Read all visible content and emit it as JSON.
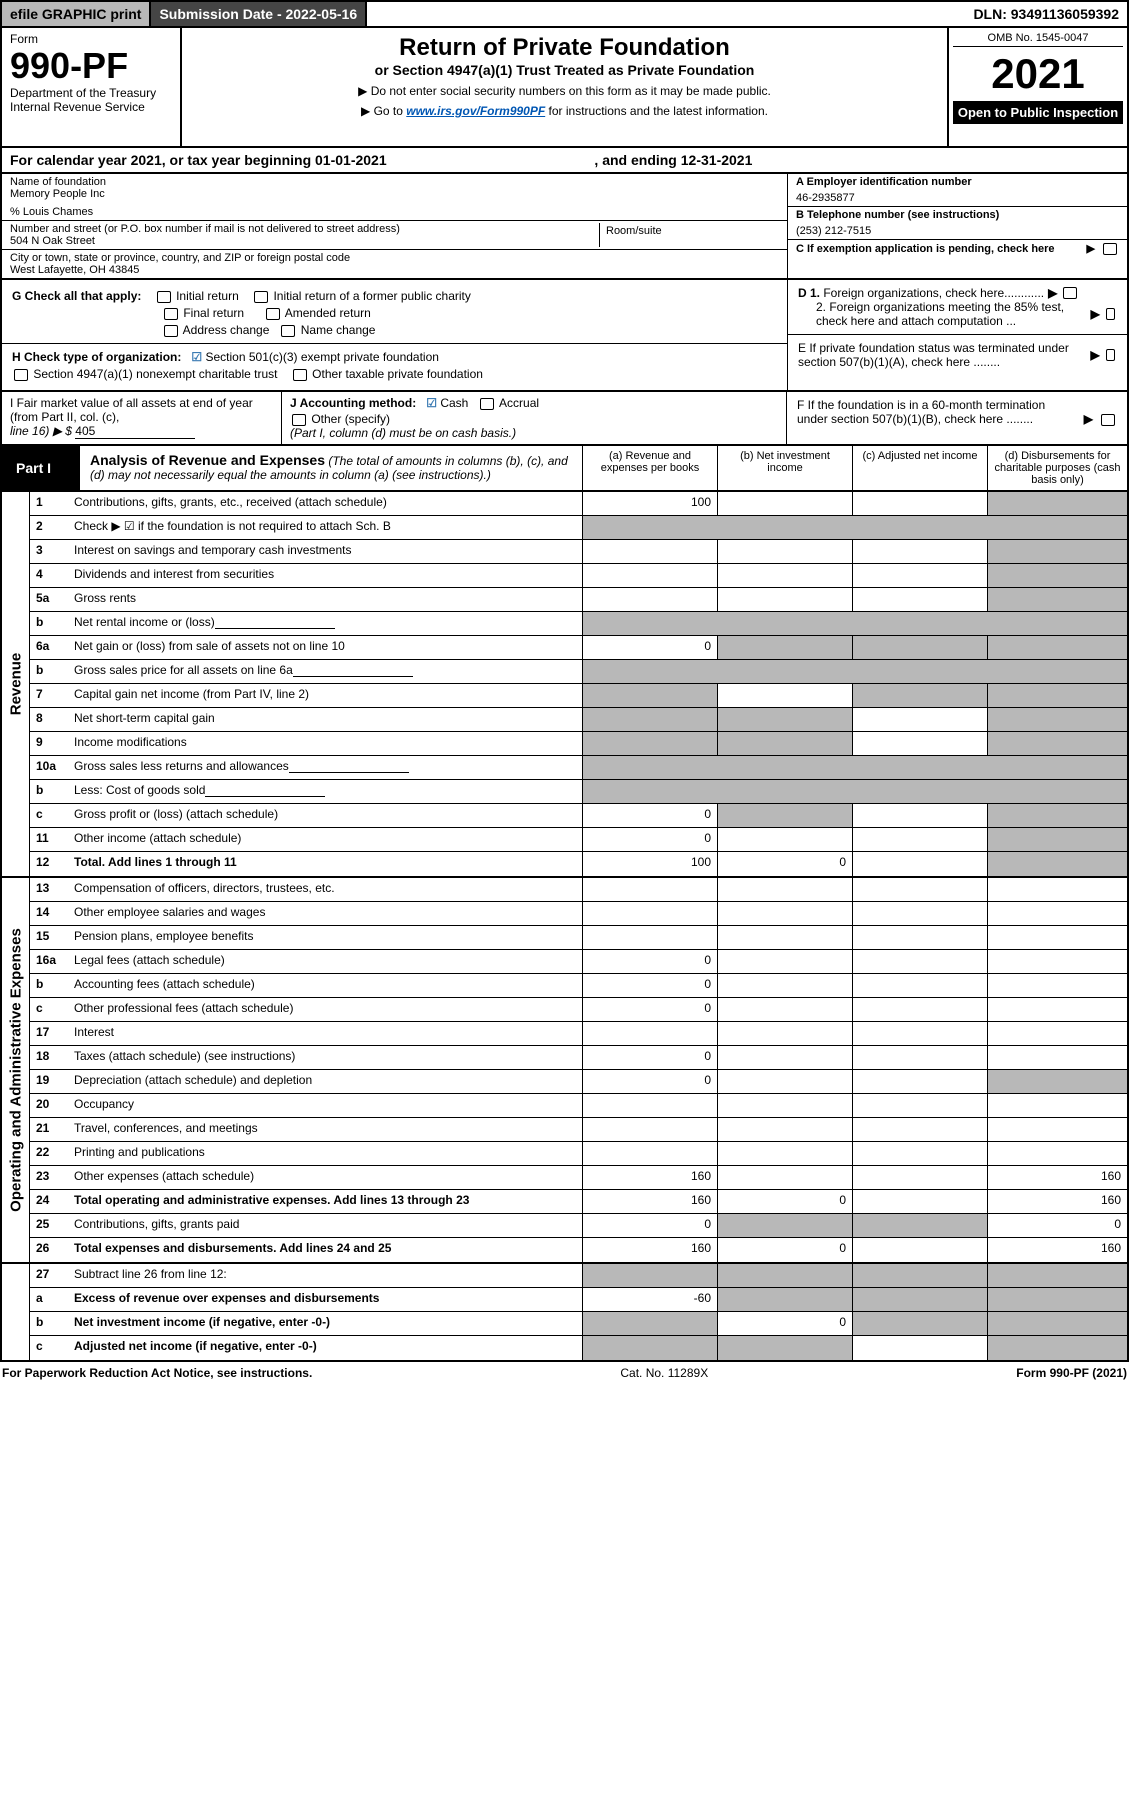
{
  "topbar": {
    "efile": "efile GRAPHIC print",
    "subdate": "Submission Date - 2022-05-16",
    "dln": "DLN: 93491136059392"
  },
  "header": {
    "form": "Form",
    "formno": "990-PF",
    "dept": "Department of the Treasury",
    "irs": "Internal Revenue Service",
    "title": "Return of Private Foundation",
    "sub": "or Section 4947(a)(1) Trust Treated as Private Foundation",
    "note1": "▶ Do not enter social security numbers on this form as it may be made public.",
    "note2_pre": "▶ Go to ",
    "note2_link": "www.irs.gov/Form990PF",
    "note2_post": " for instructions and the latest information.",
    "omb": "OMB No. 1545-0047",
    "year": "2021",
    "open": "Open to Public Inspection"
  },
  "calendar": {
    "pre": "For calendar year 2021, or tax year beginning ",
    "begin": "01-01-2021",
    "mid": ", and ending ",
    "end": "12-31-2021"
  },
  "info": {
    "name_lbl": "Name of foundation",
    "name": "Memory People Inc",
    "co": "% Louis Chames",
    "addr_lbl": "Number and street (or P.O. box number if mail is not delivered to street address)",
    "addr": "504 N Oak Street",
    "suite_lbl": "Room/suite",
    "city_lbl": "City or town, state or province, country, and ZIP or foreign postal code",
    "city": "West Lafayette, OH  43845",
    "ein_lbl": "A Employer identification number",
    "ein": "46-2935877",
    "tel_lbl": "B Telephone number (see instructions)",
    "tel": "(253) 212-7515",
    "c_lbl": "C If exemption application is pending, check here"
  },
  "checks": {
    "g_lbl": "G Check all that apply:",
    "g1": "Initial return",
    "g2": "Initial return of a former public charity",
    "g3": "Final return",
    "g4": "Amended return",
    "g5": "Address change",
    "g6": "Name change",
    "h_lbl": "H Check type of organization:",
    "h1": "Section 501(c)(3) exempt private foundation",
    "h2": "Section 4947(a)(1) nonexempt charitable trust",
    "h3": "Other taxable private foundation",
    "d1": "D 1. Foreign organizations, check here",
    "d2": "2. Foreign organizations meeting the 85% test, check here and attach computation ...",
    "e": "E  If private foundation status was terminated under section 507(b)(1)(A), check here ........"
  },
  "fmv": {
    "i_lbl": "I Fair market value of all assets at end of year (from Part II, col. (c),",
    "i_line": "line 16) ▶ $",
    "i_val": "405",
    "j_lbl": "J Accounting method:",
    "j_cash": "Cash",
    "j_acc": "Accrual",
    "j_other": "Other (specify)",
    "j_note": "(Part I, column (d) must be on cash basis.)",
    "f": "F  If the foundation is in a 60-month termination under section 507(b)(1)(B), check here ........"
  },
  "part1": {
    "tag": "Part I",
    "desc_b": "Analysis of Revenue and Expenses",
    "desc": " (The total of amounts in columns (b), (c), and (d) may not necessarily equal the amounts in column (a) (see instructions).)",
    "col_a": "(a)   Revenue and expenses per books",
    "col_b": "(b)   Net investment income",
    "col_c": "(c)   Adjusted net income",
    "col_d": "(d)  Disbursements for charitable purposes (cash basis only)"
  },
  "revenue_label": "Revenue",
  "expenses_label": "Operating and Administrative Expenses",
  "lines": {
    "1": {
      "n": "1",
      "t": "Contributions, gifts, grants, etc., received (attach schedule)",
      "a": "100",
      "b": "",
      "c": "",
      "d": "shade"
    },
    "2": {
      "n": "2",
      "t": "Check ▶ ☑ if the foundation is not required to attach Sch. B",
      "all": "shade"
    },
    "3": {
      "n": "3",
      "t": "Interest on savings and temporary cash investments",
      "a": "",
      "b": "",
      "c": "",
      "d": "shade"
    },
    "4": {
      "n": "4",
      "t": "Dividends and interest from securities",
      "a": "",
      "b": "",
      "c": "",
      "d": "shade"
    },
    "5a": {
      "n": "5a",
      "t": "Gross rents",
      "a": "",
      "b": "",
      "c": "",
      "d": "shade"
    },
    "5b": {
      "n": "b",
      "t": "Net rental income or (loss)",
      "sub": true,
      "all": "shade"
    },
    "6a": {
      "n": "6a",
      "t": "Net gain or (loss) from sale of assets not on line 10",
      "a": "0",
      "bshade": true,
      "cshade": true,
      "d": "shade"
    },
    "6b": {
      "n": "b",
      "t": "Gross sales price for all assets on line 6a",
      "sub": true,
      "all": "shade"
    },
    "7": {
      "n": "7",
      "t": "Capital gain net income (from Part IV, line 2)",
      "ashade": true,
      "b": "",
      "cshade": true,
      "d": "shade"
    },
    "8": {
      "n": "8",
      "t": "Net short-term capital gain",
      "ashade": true,
      "bshade": true,
      "c": "",
      "d": "shade"
    },
    "9": {
      "n": "9",
      "t": "Income modifications",
      "ashade": true,
      "bshade": true,
      "c": "",
      "d": "shade"
    },
    "10a": {
      "n": "10a",
      "t": "Gross sales less returns and allowances",
      "sub": true,
      "all": "shade"
    },
    "10b": {
      "n": "b",
      "t": "Less: Cost of goods sold",
      "sub": true,
      "all": "shade"
    },
    "10c": {
      "n": "c",
      "t": "Gross profit or (loss) (attach schedule)",
      "a": "0",
      "bshade": true,
      "c": "",
      "d": "shade"
    },
    "11": {
      "n": "11",
      "t": "Other income (attach schedule)",
      "a": "0",
      "b": "",
      "c": "",
      "d": "shade"
    },
    "12": {
      "n": "12",
      "t": "Total. Add lines 1 through 11",
      "bold": true,
      "a": "100",
      "b": "0",
      "c": "",
      "d": "shade"
    },
    "13": {
      "n": "13",
      "t": "Compensation of officers, directors, trustees, etc.",
      "a": "",
      "b": "",
      "c": "",
      "d": ""
    },
    "14": {
      "n": "14",
      "t": "Other employee salaries and wages",
      "a": "",
      "b": "",
      "c": "",
      "d": ""
    },
    "15": {
      "n": "15",
      "t": "Pension plans, employee benefits",
      "a": "",
      "b": "",
      "c": "",
      "d": ""
    },
    "16a": {
      "n": "16a",
      "t": "Legal fees (attach schedule)",
      "a": "0",
      "b": "",
      "c": "",
      "d": ""
    },
    "16b": {
      "n": "b",
      "t": "Accounting fees (attach schedule)",
      "a": "0",
      "b": "",
      "c": "",
      "d": ""
    },
    "16c": {
      "n": "c",
      "t": "Other professional fees (attach schedule)",
      "a": "0",
      "b": "",
      "c": "",
      "d": ""
    },
    "17": {
      "n": "17",
      "t": "Interest",
      "a": "",
      "b": "",
      "c": "",
      "d": ""
    },
    "18": {
      "n": "18",
      "t": "Taxes (attach schedule) (see instructions)",
      "a": "0",
      "b": "",
      "c": "",
      "d": ""
    },
    "19": {
      "n": "19",
      "t": "Depreciation (attach schedule) and depletion",
      "a": "0",
      "b": "",
      "c": "",
      "d": "shade"
    },
    "20": {
      "n": "20",
      "t": "Occupancy",
      "a": "",
      "b": "",
      "c": "",
      "d": ""
    },
    "21": {
      "n": "21",
      "t": "Travel, conferences, and meetings",
      "a": "",
      "b": "",
      "c": "",
      "d": ""
    },
    "22": {
      "n": "22",
      "t": "Printing and publications",
      "a": "",
      "b": "",
      "c": "",
      "d": ""
    },
    "23": {
      "n": "23",
      "t": "Other expenses (attach schedule)",
      "a": "160",
      "b": "",
      "c": "",
      "d": "160"
    },
    "24": {
      "n": "24",
      "t": "Total operating and administrative expenses. Add lines 13 through 23",
      "bold": true,
      "a": "160",
      "b": "0",
      "c": "",
      "d": "160"
    },
    "25": {
      "n": "25",
      "t": "Contributions, gifts, grants paid",
      "a": "0",
      "bshade": true,
      "cshade": true,
      "d": "0"
    },
    "26": {
      "n": "26",
      "t": "Total expenses and disbursements. Add lines 24 and 25",
      "bold": true,
      "a": "160",
      "b": "0",
      "c": "",
      "d": "160"
    },
    "27": {
      "n": "27",
      "t": "Subtract line 26 from line 12:",
      "all4": true
    },
    "27a": {
      "n": "a",
      "t": "Excess of revenue over expenses and disbursements",
      "bold": true,
      "a": "-60",
      "bshade": true,
      "cshade": true,
      "d": "shade"
    },
    "27b": {
      "n": "b",
      "t": "Net investment income (if negative, enter -0-)",
      "bold": true,
      "ashade": true,
      "b": "0",
      "cshade": true,
      "d": "shade"
    },
    "27c": {
      "n": "c",
      "t": "Adjusted net income (if negative, enter -0-)",
      "bold": true,
      "ashade": true,
      "bshade": true,
      "c": "",
      "d": "shade"
    }
  },
  "footer": {
    "left": "For Paperwork Reduction Act Notice, see instructions.",
    "mid": "Cat. No. 11289X",
    "right": "Form 990-PF (2021)"
  }
}
